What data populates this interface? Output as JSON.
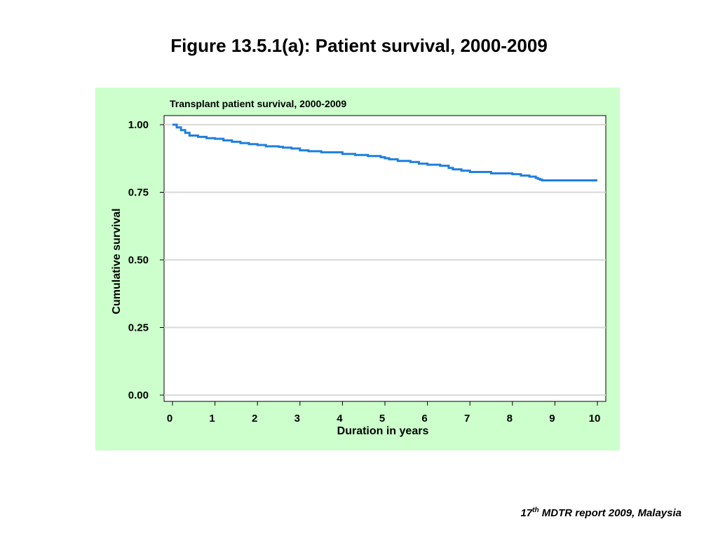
{
  "slide": {
    "title": "Figure 13.5.1(a):  Patient survival, 2000-2009",
    "footer_number": "17",
    "footer_superscript": "th",
    "footer_text": " MDTR report 2009, Malaysia"
  },
  "colors": {
    "panel_background": "#ccffcc",
    "plot_background": "#ffffff",
    "line": "#1f7fe0",
    "grid": "#d9d9d9"
  },
  "chart_data": {
    "type": "line",
    "step": true,
    "title": "Transplant patient survival, 2000-2009",
    "xlabel": "Duration in years",
    "ylabel": "Cumulative survival",
    "xlim": [
      0,
      10
    ],
    "ylim": [
      0,
      1
    ],
    "x_ticks": [
      0,
      1,
      2,
      3,
      4,
      5,
      6,
      7,
      8,
      9,
      10
    ],
    "x_tick_labels": [
      "0",
      "1",
      "2",
      "3",
      "4",
      "5",
      "6",
      "7",
      "8",
      "9",
      "10"
    ],
    "y_ticks": [
      0,
      0.25,
      0.5,
      0.75,
      1.0
    ],
    "y_tick_labels": [
      "0.00",
      "0.25",
      "0.50",
      "0.75",
      "1.00"
    ],
    "grid": "horizontal",
    "series": [
      {
        "x": [
          0,
          0.1,
          0.2,
          0.3,
          0.4,
          0.6,
          0.8,
          1.0,
          1.2,
          1.4,
          1.6,
          1.8,
          2.0,
          2.2,
          2.5,
          2.6,
          2.8,
          3.0,
          3.2,
          3.5,
          4.0,
          4.3,
          4.6,
          4.9,
          5.0,
          5.1,
          5.3,
          5.6,
          5.8,
          6.0,
          6.3,
          6.5,
          6.6,
          6.8,
          7.0,
          7.5,
          8.0,
          8.2,
          8.4,
          8.55,
          8.6,
          8.65,
          8.7,
          10.0
        ],
        "y": [
          1.0,
          0.99,
          0.98,
          0.97,
          0.96,
          0.955,
          0.95,
          0.948,
          0.942,
          0.937,
          0.932,
          0.928,
          0.925,
          0.92,
          0.918,
          0.915,
          0.912,
          0.905,
          0.902,
          0.898,
          0.892,
          0.888,
          0.884,
          0.88,
          0.876,
          0.872,
          0.866,
          0.862,
          0.856,
          0.852,
          0.848,
          0.84,
          0.835,
          0.83,
          0.825,
          0.82,
          0.817,
          0.812,
          0.808,
          0.803,
          0.8,
          0.797,
          0.794,
          0.794
        ]
      }
    ]
  }
}
